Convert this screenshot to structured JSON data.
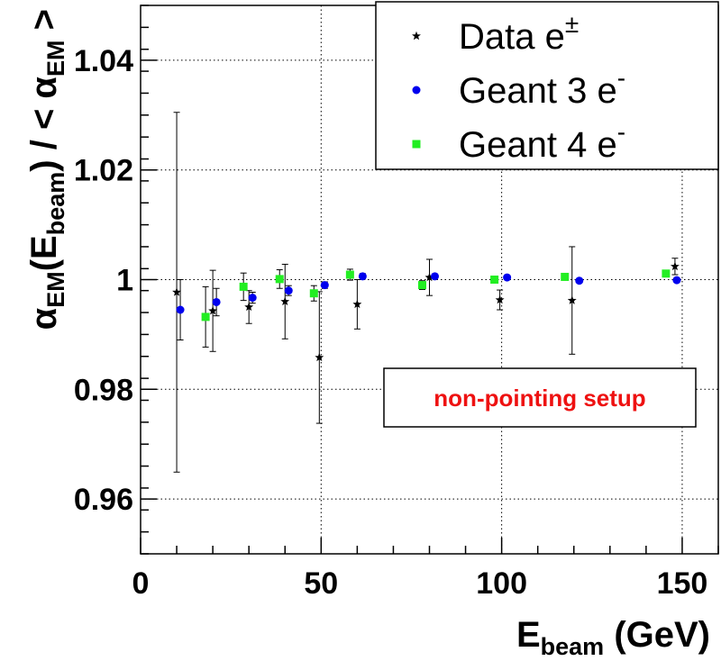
{
  "chart_data": {
    "type": "scatter",
    "xlabel": {
      "main": "E",
      "sub": "beam",
      "rest": " (GeV)"
    },
    "ylabel": {
      "alpha": "α",
      "sub1": "EM",
      "p1": "(E",
      "sub2": "beam",
      "p2": ") / < ",
      "alpha2": "α",
      "sub3": "EM",
      "p3": " >"
    },
    "xlim": [
      0,
      160
    ],
    "ylim": [
      0.95,
      1.05
    ],
    "x_ticks": [
      {
        "value": 0,
        "label": "0"
      },
      {
        "value": 50,
        "label": "50"
      },
      {
        "value": 100,
        "label": "100"
      },
      {
        "value": 150,
        "label": "150"
      }
    ],
    "y_ticks": [
      {
        "value": 0.96,
        "label": "0.96"
      },
      {
        "value": 0.98,
        "label": "0.98"
      },
      {
        "value": 1.0,
        "label": "1"
      },
      {
        "value": 1.02,
        "label": "1.02"
      },
      {
        "value": 1.04,
        "label": "1.04"
      }
    ],
    "grid": true,
    "legend_position": "top-right",
    "series": [
      {
        "name": "Data e",
        "name_sup": "±",
        "marker": "star",
        "color": "#000000",
        "points": [
          {
            "x": 10,
            "y": 0.9977,
            "err": 0.0328
          },
          {
            "x": 20,
            "y": 0.9943,
            "err": 0.0074
          },
          {
            "x": 30,
            "y": 0.995,
            "err": 0.003
          },
          {
            "x": 40,
            "y": 0.996,
            "err": 0.0068
          },
          {
            "x": 49.5,
            "y": 0.9858,
            "err": 0.012
          },
          {
            "x": 60,
            "y": 0.9955,
            "err": 0.0045
          },
          {
            "x": 80,
            "y": 1.0004,
            "err": 0.0033
          },
          {
            "x": 99.5,
            "y": 0.9963,
            "err": 0.0018
          },
          {
            "x": 119.5,
            "y": 0.9962,
            "err": 0.0098
          },
          {
            "x": 148,
            "y": 1.0024,
            "err": 0.0015
          }
        ]
      },
      {
        "name": "Geant 3 e",
        "name_sup": "-",
        "marker": "circle",
        "color": "#0000ee",
        "points": [
          {
            "x": 11,
            "y": 0.9945,
            "err": 0.0055
          },
          {
            "x": 21,
            "y": 0.9959,
            "err": 0.0025
          },
          {
            "x": 31,
            "y": 0.9967,
            "err": 0.001
          },
          {
            "x": 41,
            "y": 0.998,
            "err": 0.0009
          },
          {
            "x": 51,
            "y": 0.999,
            "err": 0.0006
          },
          {
            "x": 61.5,
            "y": 1.0006,
            "err": 0.0005
          },
          {
            "x": 81.5,
            "y": 1.0006,
            "err": 0.0004
          },
          {
            "x": 101.5,
            "y": 1.0004,
            "err": 0.0004
          },
          {
            "x": 121.5,
            "y": 0.9998,
            "err": 0.0003
          },
          {
            "x": 148.5,
            "y": 0.9999,
            "err": 0.0003
          }
        ]
      },
      {
        "name": "Geant 4 e",
        "name_sup": "-",
        "marker": "square",
        "color": "#22ee22",
        "points": [
          {
            "x": 18,
            "y": 0.9932,
            "err": 0.0055
          },
          {
            "x": 28.5,
            "y": 0.9987,
            "err": 0.0025
          },
          {
            "x": 38.5,
            "y": 1.0001,
            "err": 0.0017
          },
          {
            "x": 48,
            "y": 0.9975,
            "err": 0.0014
          },
          {
            "x": 58,
            "y": 1.0009,
            "err": 0.001
          },
          {
            "x": 78,
            "y": 0.999,
            "err": 0.0008
          },
          {
            "x": 98,
            "y": 1.0,
            "err": 0.0006
          },
          {
            "x": 117.5,
            "y": 1.0005,
            "err": 0.0005
          },
          {
            "x": 145.5,
            "y": 1.0011,
            "err": 0.0005
          }
        ]
      }
    ],
    "annotation": {
      "text": "non-pointing setup",
      "color": "#ee1111"
    }
  }
}
